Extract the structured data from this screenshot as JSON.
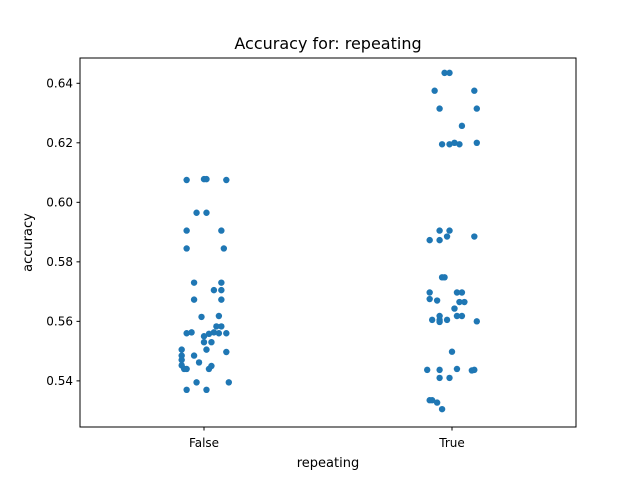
{
  "chart_data": {
    "type": "scatter",
    "title": "Accuracy for: repeating",
    "xlabel": "repeating",
    "ylabel": "accuracy",
    "categories": [
      "False",
      "True"
    ],
    "ylim": [
      0.5245,
      0.6485
    ],
    "yticks": [
      0.54,
      0.56,
      0.58,
      0.6,
      0.62,
      0.64
    ],
    "ytick_labels": [
      "0.54",
      "0.56",
      "0.58",
      "0.60",
      "0.62",
      "0.64"
    ],
    "grid": false,
    "series": [
      {
        "category": "False",
        "color": "#1f77b4",
        "points": [
          {
            "offset": -0.07,
            "y": 0.6075
          },
          {
            "offset": 0.0,
            "y": 0.6078
          },
          {
            "offset": 0.01,
            "y": 0.6078
          },
          {
            "offset": 0.09,
            "y": 0.6075
          },
          {
            "offset": -0.03,
            "y": 0.5965
          },
          {
            "offset": 0.01,
            "y": 0.5965
          },
          {
            "offset": -0.07,
            "y": 0.5905
          },
          {
            "offset": 0.07,
            "y": 0.5905
          },
          {
            "offset": -0.07,
            "y": 0.5845
          },
          {
            "offset": 0.08,
            "y": 0.5845
          },
          {
            "offset": -0.04,
            "y": 0.573
          },
          {
            "offset": 0.07,
            "y": 0.573
          },
          {
            "offset": 0.04,
            "y": 0.5705
          },
          {
            "offset": 0.07,
            "y": 0.5705
          },
          {
            "offset": -0.04,
            "y": 0.5673
          },
          {
            "offset": 0.07,
            "y": 0.5673
          },
          {
            "offset": -0.01,
            "y": 0.5615
          },
          {
            "offset": 0.06,
            "y": 0.5618
          },
          {
            "offset": 0.05,
            "y": 0.5583
          },
          {
            "offset": 0.07,
            "y": 0.5583
          },
          {
            "offset": -0.07,
            "y": 0.556
          },
          {
            "offset": -0.05,
            "y": 0.5563
          },
          {
            "offset": 0.02,
            "y": 0.5558
          },
          {
            "offset": 0.04,
            "y": 0.5563
          },
          {
            "offset": 0.0,
            "y": 0.555
          },
          {
            "offset": 0.06,
            "y": 0.556
          },
          {
            "offset": 0.09,
            "y": 0.556
          },
          {
            "offset": 0.0,
            "y": 0.553
          },
          {
            "offset": 0.03,
            "y": 0.553
          },
          {
            "offset": -0.09,
            "y": 0.5505
          },
          {
            "offset": 0.01,
            "y": 0.5505
          },
          {
            "offset": 0.09,
            "y": 0.5497
          },
          {
            "offset": -0.09,
            "y": 0.5485
          },
          {
            "offset": -0.04,
            "y": 0.5485
          },
          {
            "offset": -0.09,
            "y": 0.547
          },
          {
            "offset": -0.02,
            "y": 0.5462
          },
          {
            "offset": -0.09,
            "y": 0.5452
          },
          {
            "offset": 0.03,
            "y": 0.545
          },
          {
            "offset": -0.08,
            "y": 0.544
          },
          {
            "offset": -0.07,
            "y": 0.544
          },
          {
            "offset": 0.02,
            "y": 0.544
          },
          {
            "offset": -0.03,
            "y": 0.5395
          },
          {
            "offset": 0.1,
            "y": 0.5395
          },
          {
            "offset": -0.07,
            "y": 0.537
          },
          {
            "offset": 0.01,
            "y": 0.537
          }
        ]
      },
      {
        "category": "True",
        "color": "#1f77b4",
        "points": [
          {
            "offset": -0.03,
            "y": 0.6435
          },
          {
            "offset": -0.01,
            "y": 0.6435
          },
          {
            "offset": -0.07,
            "y": 0.6375
          },
          {
            "offset": 0.09,
            "y": 0.6375
          },
          {
            "offset": -0.05,
            "y": 0.6315
          },
          {
            "offset": 0.1,
            "y": 0.6315
          },
          {
            "offset": 0.04,
            "y": 0.6257
          },
          {
            "offset": -0.04,
            "y": 0.6195
          },
          {
            "offset": -0.01,
            "y": 0.6195
          },
          {
            "offset": 0.01,
            "y": 0.62
          },
          {
            "offset": 0.03,
            "y": 0.6195
          },
          {
            "offset": 0.1,
            "y": 0.62
          },
          {
            "offset": -0.05,
            "y": 0.5905
          },
          {
            "offset": -0.01,
            "y": 0.5905
          },
          {
            "offset": -0.02,
            "y": 0.5885
          },
          {
            "offset": 0.09,
            "y": 0.5885
          },
          {
            "offset": -0.09,
            "y": 0.5873
          },
          {
            "offset": -0.05,
            "y": 0.5873
          },
          {
            "offset": -0.04,
            "y": 0.5748
          },
          {
            "offset": -0.03,
            "y": 0.5748
          },
          {
            "offset": -0.09,
            "y": 0.5697
          },
          {
            "offset": 0.02,
            "y": 0.5697
          },
          {
            "offset": 0.04,
            "y": 0.5697
          },
          {
            "offset": -0.09,
            "y": 0.5675
          },
          {
            "offset": -0.06,
            "y": 0.567
          },
          {
            "offset": 0.03,
            "y": 0.5665
          },
          {
            "offset": 0.05,
            "y": 0.5665
          },
          {
            "offset": 0.01,
            "y": 0.5643
          },
          {
            "offset": -0.05,
            "y": 0.5618
          },
          {
            "offset": 0.02,
            "y": 0.5618
          },
          {
            "offset": 0.04,
            "y": 0.5618
          },
          {
            "offset": -0.08,
            "y": 0.5605
          },
          {
            "offset": -0.05,
            "y": 0.5605
          },
          {
            "offset": -0.02,
            "y": 0.5605
          },
          {
            "offset": -0.05,
            "y": 0.5598
          },
          {
            "offset": 0.1,
            "y": 0.56
          },
          {
            "offset": 0.0,
            "y": 0.5498
          },
          {
            "offset": -0.1,
            "y": 0.5437
          },
          {
            "offset": -0.05,
            "y": 0.5437
          },
          {
            "offset": 0.02,
            "y": 0.544
          },
          {
            "offset": 0.08,
            "y": 0.5435
          },
          {
            "offset": 0.09,
            "y": 0.5437
          },
          {
            "offset": -0.05,
            "y": 0.541
          },
          {
            "offset": -0.01,
            "y": 0.541
          },
          {
            "offset": -0.09,
            "y": 0.5335
          },
          {
            "offset": -0.08,
            "y": 0.5335
          },
          {
            "offset": -0.06,
            "y": 0.5327
          },
          {
            "offset": -0.04,
            "y": 0.5305
          }
        ]
      }
    ]
  }
}
